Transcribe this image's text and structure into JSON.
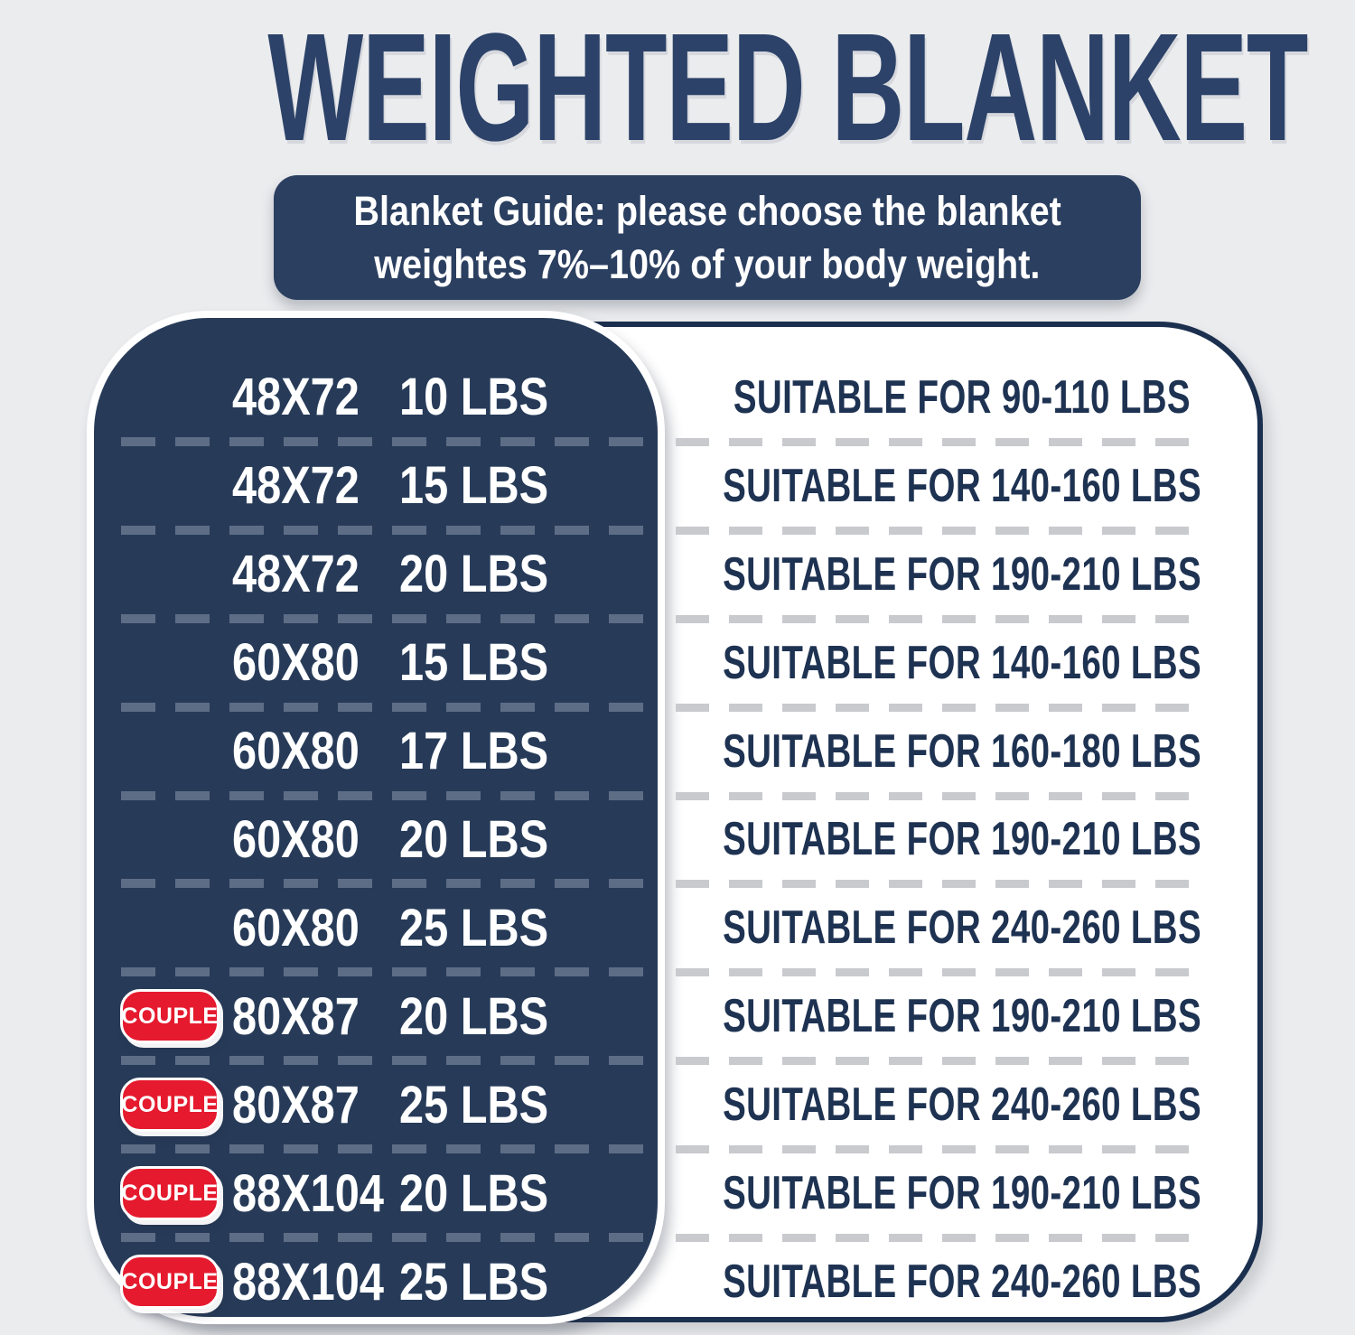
{
  "header": {
    "title": "WEIGHTED BLANKET"
  },
  "guide": {
    "line1": "Blanket Guide: please choose the blanket",
    "line2": "weightes 7%–10% of your body weight."
  },
  "table": {
    "badge_label": "COUPLE",
    "columns": [
      "size",
      "weight",
      "suitable_for"
    ],
    "rows": [
      {
        "couple": false,
        "size": "48X72",
        "weight": "10 LBS",
        "suitable": "SUITABLE FOR 90-110 LBS"
      },
      {
        "couple": false,
        "size": "48X72",
        "weight": "15 LBS",
        "suitable": "SUITABLE FOR 140-160 LBS"
      },
      {
        "couple": false,
        "size": "48X72",
        "weight": "20 LBS",
        "suitable": "SUITABLE FOR 190-210 LBS"
      },
      {
        "couple": false,
        "size": "60X80",
        "weight": "15 LBS",
        "suitable": "SUITABLE FOR 140-160 LBS"
      },
      {
        "couple": false,
        "size": "60X80",
        "weight": "17 LBS",
        "suitable": "SUITABLE FOR 160-180 LBS"
      },
      {
        "couple": false,
        "size": "60X80",
        "weight": "20 LBS",
        "suitable": "SUITABLE FOR 190-210 LBS"
      },
      {
        "couple": false,
        "size": "60X80",
        "weight": "25 LBS",
        "suitable": "SUITABLE FOR 240-260 LBS"
      },
      {
        "couple": true,
        "size": "80X87",
        "weight": "20 LBS",
        "suitable": "SUITABLE FOR 190-210 LBS"
      },
      {
        "couple": true,
        "size": "80X87",
        "weight": "25 LBS",
        "suitable": "SUITABLE FOR 240-260 LBS"
      },
      {
        "couple": true,
        "size": "88X104",
        "weight": "20 LBS",
        "suitable": "SUITABLE FOR 190-210 LBS"
      },
      {
        "couple": true,
        "size": "88X104",
        "weight": "25 LBS",
        "suitable": "SUITABLE FOR 240-260 LBS"
      }
    ]
  },
  "colors": {
    "background": "#ebecee",
    "title_navy": "#2c4269",
    "panel_navy": "#273b59",
    "guide_navy": "#2b3f60",
    "border_navy": "#1b2f4e",
    "text_navy": "#1e3252",
    "badge_red": "#e51a2e",
    "dash_on_navy": "#5e6d86",
    "dash_on_white": "#c8cace",
    "text_white": "#ffffff"
  }
}
